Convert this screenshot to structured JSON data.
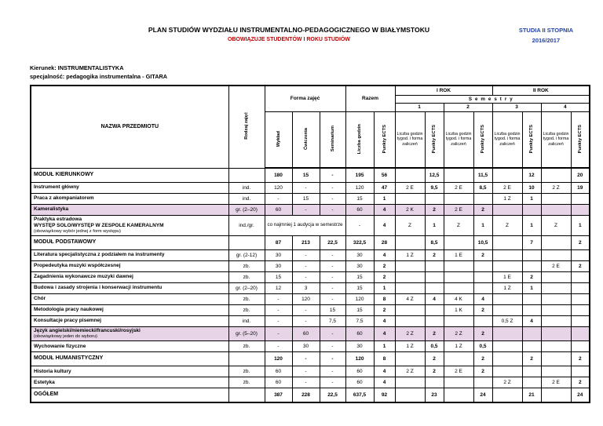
{
  "page": {
    "title": "PLAN STUDIÓW WYDZIAŁU INSTRUMENTALNO-PEDAGOGICZNEGO W BIAŁYMSTOKU",
    "notice": "OBOWIĄZUJE STUDENTÓW I ROKU STUDIÓW",
    "degree": "STUDIA II STOPNIA",
    "year": "2016/2017",
    "field": "Kierunek: INSTRUMENTALISTYKA",
    "specialization": "specjalność: pedagogika instrumentalna - GITARA",
    "colors": {
      "accent_blue": "#2243a6",
      "accent_red": "#c00000",
      "highlight": "#e7d5e7"
    }
  },
  "table": {
    "headers": {
      "nazwa": "NAZWA PRZEDMIOTU",
      "rodzaj": "Rodzaj zajęć",
      "forma": "Forma zajęć",
      "razem": "Razem",
      "wyklad": "Wykład",
      "cwiczenia": "Ćwiczenia",
      "seminarium": "Seminarium",
      "liczba_godzin": "Liczba godzin",
      "punkty_ects": "Punkty ECTS",
      "rok1": "I ROK",
      "rok2": "II ROK",
      "semestry": "Semestry",
      "sem_numbers": [
        "1",
        "2",
        "3",
        "4"
      ],
      "sem_hours_label": "Liczba godzin tygod. i forma zaliczeń"
    },
    "rows": [
      {
        "type": "module",
        "name": "MODUŁ KIERUNKOWY",
        "rodzaj": "",
        "wyklad": "180",
        "cwiczenia": "15",
        "seminarium": "-",
        "godziny": "195",
        "ects": "56",
        "semesters": [
          "",
          "12,5",
          "",
          "11,5",
          "",
          "12",
          "",
          "20"
        ]
      },
      {
        "type": "subject",
        "name": "Instrument główny",
        "rodzaj": "ind.",
        "wyklad": "120",
        "cwiczenia": "-",
        "seminarium": "-",
        "godziny": "120",
        "ects": "47",
        "semesters": [
          "2 E",
          "9,5",
          "2 E",
          "8,5",
          "2 E",
          "10",
          "2 Z",
          "19"
        ]
      },
      {
        "type": "subject",
        "name": "Praca z akompaniatorem",
        "rodzaj": "ind.",
        "wyklad": "-",
        "cwiczenia": "15",
        "seminarium": "-",
        "godziny": "15",
        "ects": "1",
        "semesters": [
          "",
          "",
          "",
          "",
          "1 Z",
          "1",
          "",
          ""
        ]
      },
      {
        "type": "subject",
        "highlight": true,
        "name": "Kameralistyka",
        "rodzaj": "gr. (2–20)",
        "wyklad": "60",
        "cwiczenia": "-",
        "seminarium": "-",
        "godziny": "60",
        "ects": "4",
        "semesters": [
          "2 K",
          "2",
          "2 E",
          "2",
          "",
          "",
          "",
          ""
        ]
      },
      {
        "type": "subject",
        "name": "Praktyka estradowa",
        "name2": "WYSTĘP SOLO/WYSTĘP W ZESPOLE KAMERALNYM",
        "note": "(obowiązkowy wybór jednej z form występu)",
        "rodzaj": "ind./gr.",
        "forma_merged": "co najmniej 1 audycja w semestrze",
        "godziny": "-",
        "ects": "4",
        "semesters": [
          "Z",
          "1",
          "Z",
          "1",
          "Z",
          "1",
          "Z",
          "1"
        ]
      },
      {
        "type": "module",
        "name": "MODUŁ PODSTAWOWY",
        "rodzaj": "",
        "wyklad": "87",
        "cwiczenia": "213",
        "seminarium": "22,5",
        "godziny": "322,5",
        "ects": "28",
        "semesters": [
          "",
          "8,5",
          "",
          "10,5",
          "",
          "7",
          "",
          "2"
        ]
      },
      {
        "type": "subject",
        "name": "Literatura specjalistyczna z podziałem na instrumenty",
        "rodzaj": "gr. (2-12)",
        "wyklad": "30",
        "cwiczenia": "-",
        "seminarium": "-",
        "godziny": "30",
        "ects": "4",
        "semesters": [
          "1 Z",
          "2",
          "1 E",
          "2",
          "",
          "",
          "",
          ""
        ]
      },
      {
        "type": "subject",
        "name": "Propedeutyka muzyki współczesnej",
        "rodzaj": "zb.",
        "wyklad": "30",
        "cwiczenia": "-",
        "seminarium": "-",
        "godziny": "30",
        "ects": "2",
        "semesters": [
          "",
          "",
          "",
          "",
          "",
          "",
          "2 E",
          "2"
        ]
      },
      {
        "type": "subject",
        "name": "Zagadnienia wykonawcze muzyki dawnej",
        "rodzaj": "zb.",
        "wyklad": "15",
        "cwiczenia": "-",
        "seminarium": "-",
        "godziny": "15",
        "ects": "2",
        "semesters": [
          "",
          "",
          "",
          "",
          "1 E",
          "2",
          "",
          ""
        ]
      },
      {
        "type": "subject",
        "name": "Budowa i zasady strojenia i konserwacji instrumentu",
        "rodzaj": "gr. (2–20)",
        "wyklad": "12",
        "cwiczenia": "3",
        "seminarium": "-",
        "godziny": "15",
        "ects": "1",
        "semesters": [
          "",
          "",
          "",
          "",
          "1 Z",
          "1",
          "",
          ""
        ]
      },
      {
        "type": "subject",
        "name": "Chór",
        "rodzaj": "zb.",
        "wyklad": "-",
        "cwiczenia": "120",
        "seminarium": "-",
        "godziny": "120",
        "ects": "8",
        "semesters": [
          "4 Z",
          "4",
          "4 K",
          "4",
          "",
          "",
          "",
          ""
        ]
      },
      {
        "type": "subject",
        "name": "Metodologia pracy naukowej",
        "rodzaj": "zb.",
        "wyklad": "-",
        "cwiczenia": "-",
        "seminarium": "15",
        "godziny": "15",
        "ects": "2",
        "semesters": [
          "",
          "",
          "1 K",
          "2",
          "",
          "",
          "",
          ""
        ]
      },
      {
        "type": "subject",
        "name": "Konsultacje pracy pisemnej",
        "rodzaj": "ind.",
        "wyklad": "-",
        "cwiczenia": "-",
        "seminarium": "7,5",
        "godziny": "7,5",
        "ects": "4",
        "semesters": [
          "",
          "",
          "",
          "",
          "0,5 Z",
          "4",
          "",
          ""
        ]
      },
      {
        "type": "subject",
        "highlight": true,
        "name": "Język angielski/niemiecki/francuski/rosyjski",
        "note": "(obowiązkowy jeden do wyboru)",
        "rodzaj": "gr. (5–20)",
        "wyklad": "-",
        "cwiczenia": "60",
        "seminarium": "-",
        "godziny": "60",
        "ects": "4",
        "semesters": [
          "2 Z",
          "2",
          "2 Z",
          "2",
          "",
          "",
          "",
          ""
        ]
      },
      {
        "type": "subject",
        "name": "Wychowanie fizyczne",
        "rodzaj": "zb.",
        "wyklad": "-",
        "cwiczenia": "30",
        "seminarium": "-",
        "godziny": "30",
        "ects": "1",
        "semesters": [
          "1 Z",
          "0,5",
          "1 Z",
          "0,5",
          "",
          "",
          "",
          ""
        ]
      },
      {
        "type": "module",
        "name": "MODUŁ HUMANISTYCZNY",
        "rodzaj": "",
        "wyklad": "120",
        "cwiczenia": "-",
        "seminarium": "-",
        "godziny": "120",
        "ects": "8",
        "semesters": [
          "",
          "2",
          "",
          "2",
          "",
          "2",
          "",
          "2"
        ]
      },
      {
        "type": "subject",
        "name": "Historia kultury",
        "rodzaj": "zb.",
        "wyklad": "60",
        "cwiczenia": "-",
        "seminarium": "-",
        "godziny": "60",
        "ects": "4",
        "semesters": [
          "2 Z",
          "2",
          "2 E",
          "2",
          "",
          "",
          "",
          ""
        ]
      },
      {
        "type": "subject",
        "name": "Estetyka",
        "rodzaj": "zb.",
        "wyklad": "60",
        "cwiczenia": "-",
        "seminarium": "-",
        "godziny": "60",
        "ects": "4",
        "semesters": [
          "",
          "",
          "",
          "",
          "2 Z",
          "",
          "2 E",
          "2"
        ]
      },
      {
        "type": "total",
        "name": "OGÓŁEM",
        "rodzaj": "",
        "wyklad": "387",
        "cwiczenia": "228",
        "seminarium": "22,5",
        "godziny": "637,5",
        "ects": "92",
        "semesters": [
          "",
          "23",
          "",
          "24",
          "",
          "21",
          "",
          "24"
        ]
      }
    ]
  }
}
